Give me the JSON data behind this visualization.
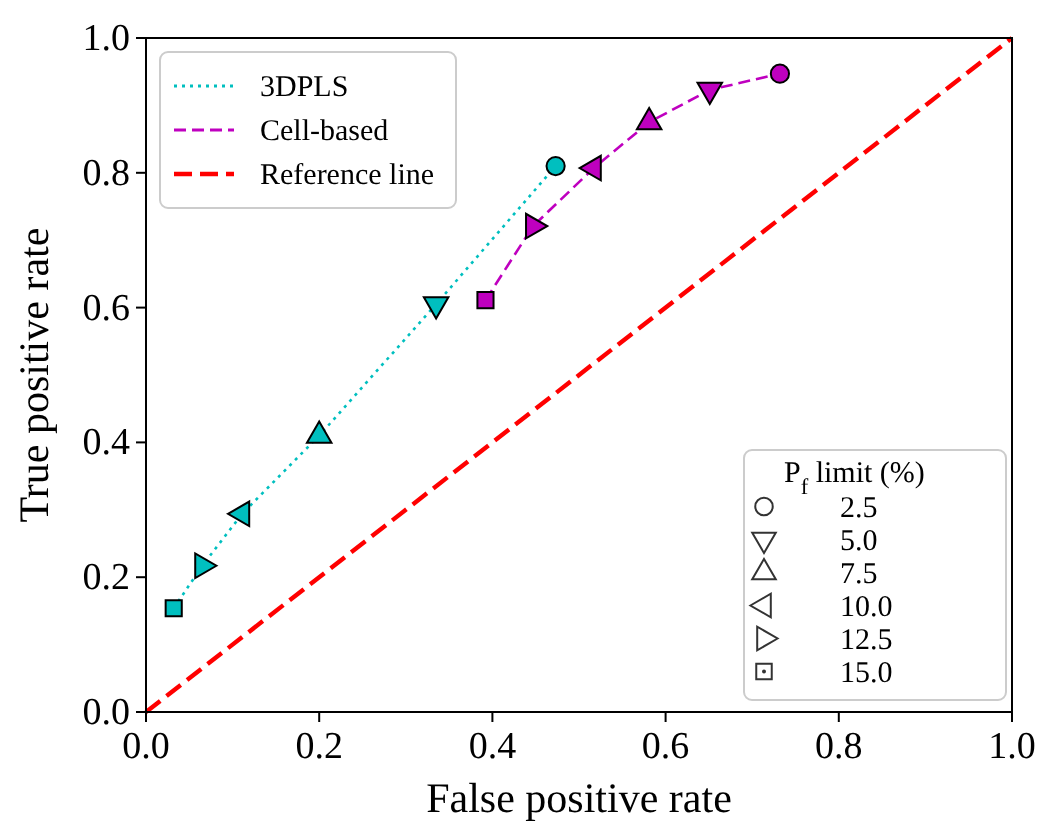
{
  "chart_data": {
    "type": "line",
    "xlabel": "False positive rate",
    "ylabel": "True positive rate",
    "xlim": [
      0,
      1
    ],
    "ylim": [
      0,
      1
    ],
    "xticks": [
      {
        "value": 0,
        "label": "0.0"
      },
      {
        "value": 0.2,
        "label": "0.2"
      },
      {
        "value": 0.4,
        "label": "0.4"
      },
      {
        "value": 0.6,
        "label": "0.6"
      },
      {
        "value": 0.8,
        "label": "0.8"
      },
      {
        "value": 1,
        "label": "1.0"
      }
    ],
    "yticks": [
      {
        "value": 0,
        "label": "0.0"
      },
      {
        "value": 0.2,
        "label": "0.2"
      },
      {
        "value": 0.4,
        "label": "0.4"
      },
      {
        "value": 0.6,
        "label": "0.6"
      },
      {
        "value": 0.8,
        "label": "0.8"
      },
      {
        "value": 1,
        "label": "1.0"
      }
    ],
    "grid": false,
    "legend": "top left",
    "legend_title": "P$_{f}$ limit (%)",
    "annotations": [
      "2.5",
      "5.0",
      "7.5",
      "10.0",
      "12.5",
      "15.0"
    ],
    "series": [
      {
        "name": "3DPLS",
        "color": "#00bfbf",
        "line_style": "dotted",
        "marker": "none",
        "x": [
          0.032,
          0.065,
          0.111,
          0.2,
          0.335,
          0.473
        ],
        "values": [
          0.154,
          0.217,
          0.294,
          0.41,
          0.605,
          0.81
        ]
      },
      {
        "name": "Cell-based",
        "color": "#bf00bf",
        "line_style": "dashed",
        "marker": "none",
        "x": [
          0.392,
          0.447,
          0.517,
          0.581,
          0.651,
          0.732
        ],
        "values": [
          0.611,
          0.721,
          0.807,
          0.875,
          0.923,
          0.947
        ]
      },
      {
        "name": "Reference line",
        "color": "#ff0000",
        "line_style": "dashed",
        "marker": "none",
        "x": [
          0,
          1
        ],
        "values": [
          0,
          1
        ]
      },
      {
        "type": "scatter",
        "marker": "circle",
        "x": [
          0.473,
          0.732
        ],
        "values": [
          0.81,
          0.947
        ],
        "colors": [
          "#00bfbf",
          "#bf00bf"
        ]
      },
      {
        "type": "scatter",
        "marker": "triangle-down",
        "x": [
          0.335,
          0.651
        ],
        "values": [
          0.605,
          0.923
        ],
        "colors": [
          "#00bfbf",
          "#bf00bf"
        ]
      },
      {
        "type": "scatter",
        "marker": "triangle",
        "x": [
          0.2,
          0.581
        ],
        "values": [
          0.41,
          0.875
        ],
        "colors": [
          "#00bfbf",
          "#bf00bf"
        ]
      },
      {
        "type": "scatter",
        "marker": "triangle-left",
        "x": [
          0.111,
          0.517
        ],
        "values": [
          0.294,
          0.807
        ],
        "colors": [
          "#00bfbf",
          "#bf00bf"
        ]
      },
      {
        "type": "scatter",
        "marker": "triangle-right",
        "x": [
          0.065,
          0.447
        ],
        "values": [
          0.217,
          0.721
        ],
        "colors": [
          "#00bfbf",
          "#bf00bf"
        ]
      },
      {
        "type": "scatter",
        "marker": "square",
        "x": [
          0.032,
          0.392
        ],
        "values": [
          0.154,
          0.611
        ],
        "colors": [
          "#00bfbf",
          "#bf00bf"
        ]
      }
    ]
  }
}
